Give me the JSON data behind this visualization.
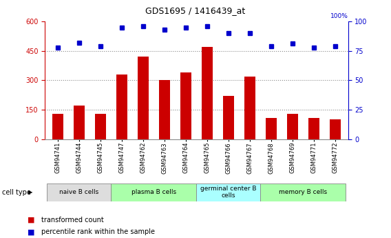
{
  "title": "GDS1695 / 1416439_at",
  "samples": [
    "GSM94741",
    "GSM94744",
    "GSM94745",
    "GSM94747",
    "GSM94762",
    "GSM94763",
    "GSM94764",
    "GSM94765",
    "GSM94766",
    "GSM94767",
    "GSM94768",
    "GSM94769",
    "GSM94771",
    "GSM94772"
  ],
  "transformed_counts": [
    130,
    170,
    130,
    330,
    420,
    300,
    340,
    470,
    220,
    320,
    110,
    130,
    110,
    100
  ],
  "percentile_ranks": [
    78,
    82,
    79,
    95,
    96,
    93,
    95,
    96,
    90,
    90,
    79,
    81,
    78,
    79
  ],
  "left_ylim": [
    0,
    600
  ],
  "left_yticks": [
    0,
    150,
    300,
    450,
    600
  ],
  "right_ylim": [
    0,
    100
  ],
  "right_yticks": [
    0,
    25,
    50,
    75,
    100
  ],
  "bar_color": "#cc0000",
  "dot_color": "#0000cc",
  "left_tick_color": "#cc0000",
  "right_tick_color": "#0000cc",
  "dotted_line_color": "#888888",
  "bar_width": 0.5,
  "legend_red_label": "transformed count",
  "legend_blue_label": "percentile rank within the sample",
  "cell_type_label": "cell type",
  "groups": [
    {
      "label": "naive B cells",
      "start": 0,
      "end": 2,
      "color": "#dddddd"
    },
    {
      "label": "plasma B cells",
      "start": 3,
      "end": 6,
      "color": "#aaffaa"
    },
    {
      "label": "germinal center B\ncells",
      "start": 7,
      "end": 9,
      "color": "#aaffff"
    },
    {
      "label": "memory B cells",
      "start": 10,
      "end": 13,
      "color": "#aaffaa"
    }
  ]
}
